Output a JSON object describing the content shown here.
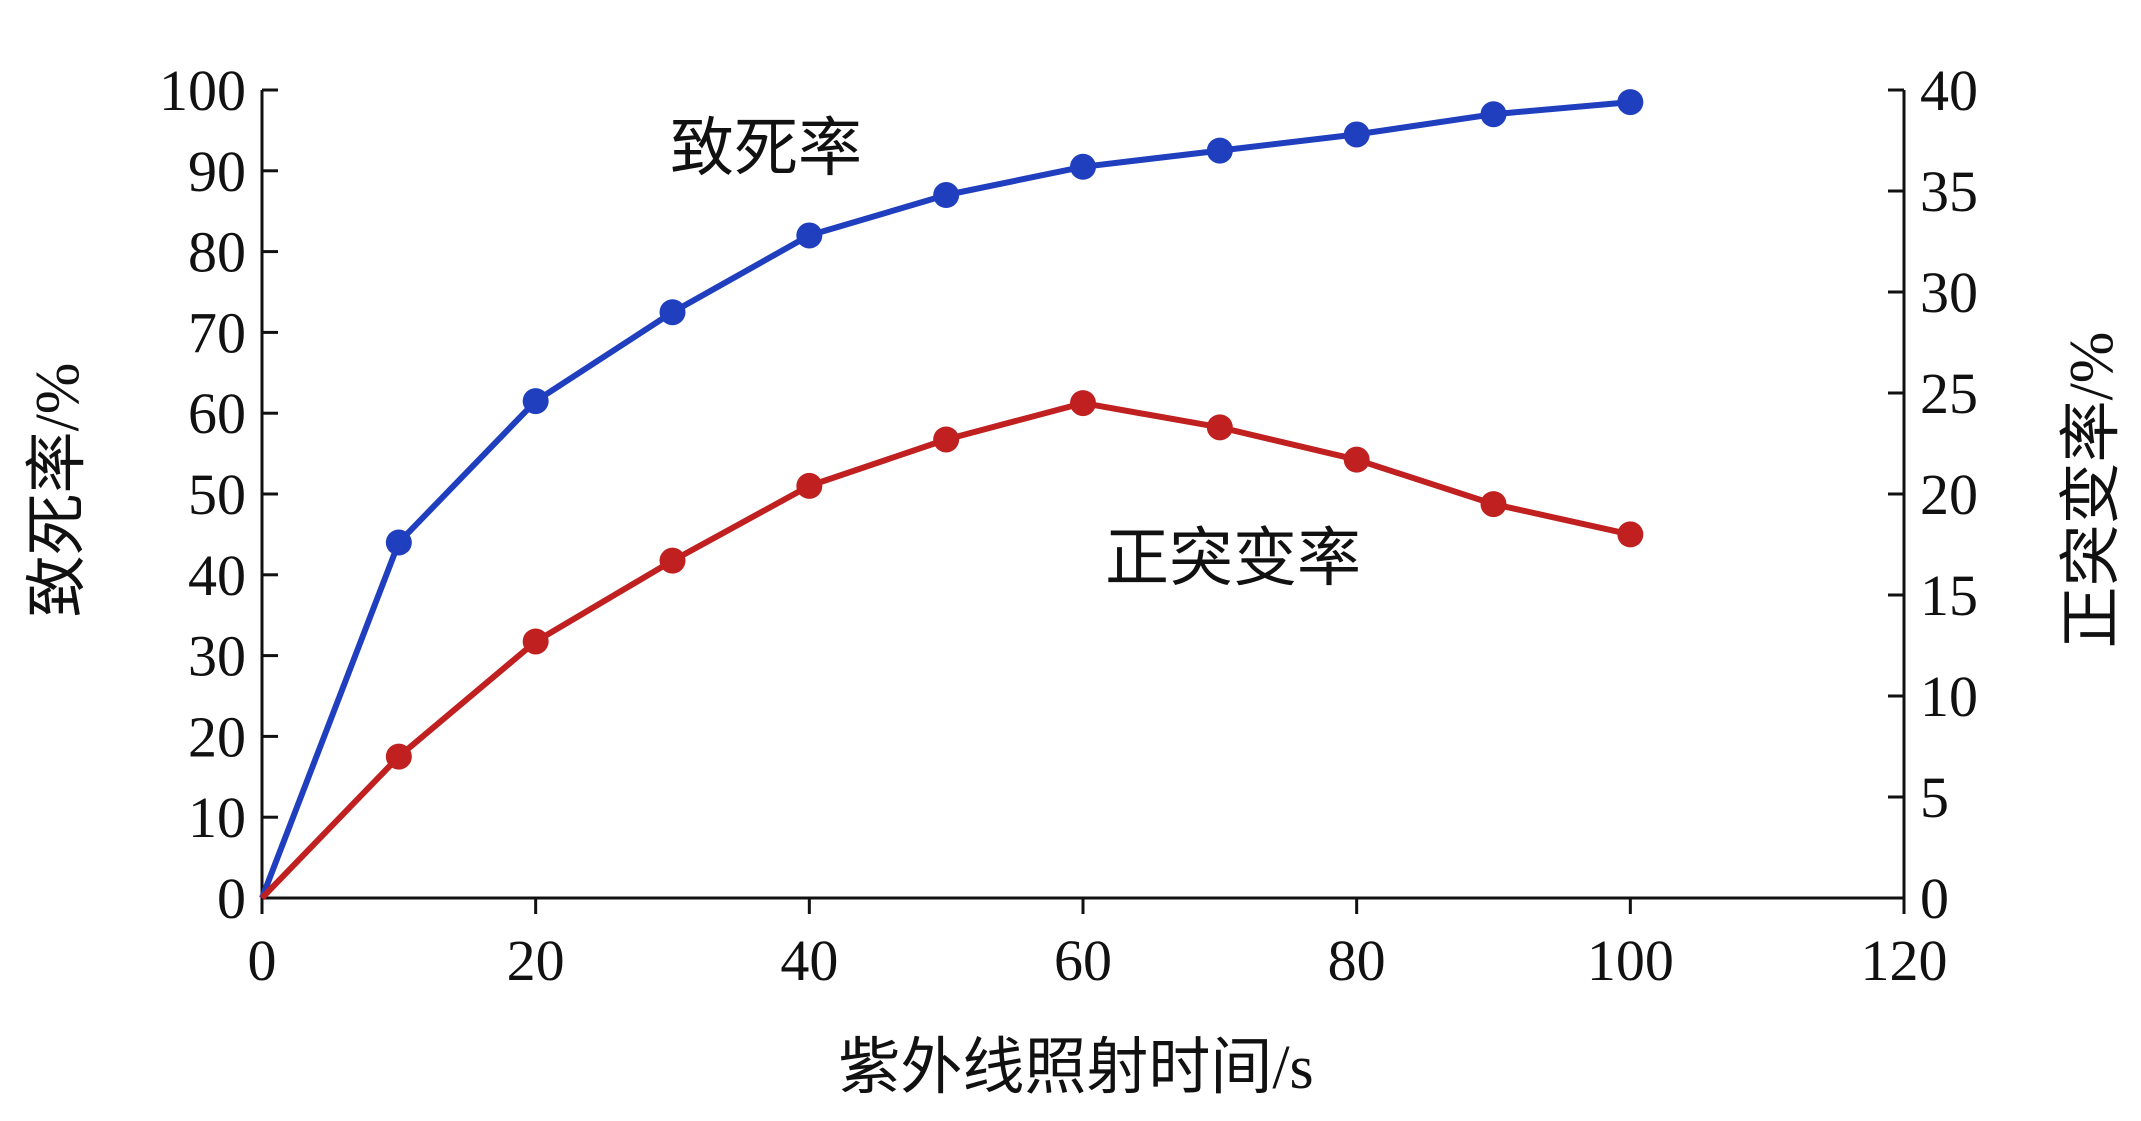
{
  "chart_data": {
    "type": "line",
    "xlabel": "紫外线照射时间/s",
    "ylabel_left": "致死率/%",
    "ylabel_right": "正突变率/%",
    "xlim": [
      0,
      120
    ],
    "x_ticks": [
      "0",
      "20",
      "40",
      "60",
      "80",
      "100",
      "120"
    ],
    "ylim_left": [
      0,
      100
    ],
    "y_ticks_left": [
      "0",
      "10",
      "20",
      "30",
      "40",
      "50",
      "60",
      "70",
      "80",
      "90",
      "100"
    ],
    "ylim_right": [
      0,
      40
    ],
    "y_ticks_right": [
      "0",
      "5",
      "10",
      "15",
      "20",
      "25",
      "30",
      "35",
      "40"
    ],
    "grid": false,
    "series": [
      {
        "name": "致死率",
        "axis": "left",
        "color": "#1f3fbf",
        "x": [
          0,
          10,
          20,
          30,
          40,
          50,
          60,
          70,
          80,
          90,
          100
        ],
        "y": [
          0,
          44,
          61.5,
          72.5,
          82,
          87,
          90.5,
          92.5,
          94.5,
          97,
          98.5
        ]
      },
      {
        "name": "正突变率",
        "axis": "right",
        "color": "#c02020",
        "x": [
          0,
          10,
          20,
          30,
          40,
          50,
          60,
          70,
          80,
          90,
          100
        ],
        "y": [
          0,
          7,
          12.7,
          16.7,
          20.4,
          22.7,
          24.5,
          23.3,
          21.7,
          19.5,
          18
        ]
      }
    ]
  }
}
